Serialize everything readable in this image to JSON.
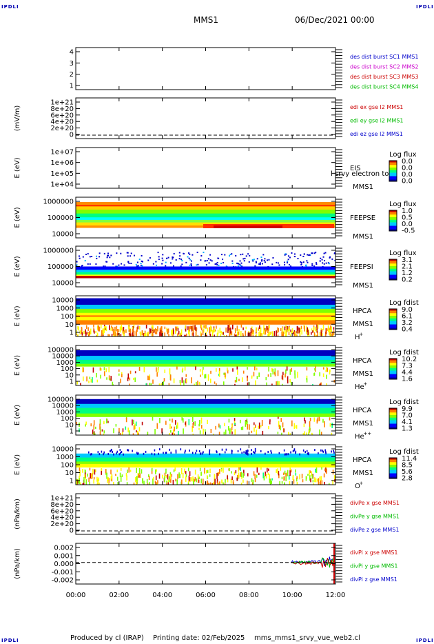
{
  "corner_labels": {
    "tl": "IPDLI",
    "tr": "IPDLI",
    "bl": "IPDLI",
    "br": "IPDLI"
  },
  "header": {
    "spacecraft": "MMS1",
    "datetime": "06/Dec/2021 00:00"
  },
  "footer": {
    "producer": "Produced by cl (IRAP)",
    "print_date": "Printing date: 02/Feb/2025",
    "filename": "mms_mms1_srvy_vue_web2.cl"
  },
  "chart_data": {
    "type": "multi-panel time series",
    "time_axis": {
      "ticks": [
        "00:00",
        "02:00",
        "04:00",
        "06:00",
        "08:00",
        "10:00",
        "12:00"
      ],
      "range": [
        "00:00",
        "12:00"
      ]
    },
    "panels": [
      {
        "id": "des-dist",
        "ylabel": "",
        "yticks": [
          "4",
          "3",
          "2",
          "1"
        ],
        "legend": [
          {
            "text": "des dist burst SC1 MMS1",
            "color": "#0000cc"
          },
          {
            "text": "des dist burst SC2 MMS2",
            "color": "#cc00cc"
          },
          {
            "text": "des dist burst SC3 MMS3",
            "color": "#cc0000"
          },
          {
            "text": "des dist burst SC4 MMS4",
            "color": "#00bb00"
          }
        ]
      },
      {
        "id": "edi",
        "ylabel": "(mV/m)",
        "yticks": [
          "1e+21",
          "8e+20",
          "6e+20",
          "4e+20",
          "2e+20",
          "0"
        ],
        "legend": [
          {
            "text": "edi ex gse l2 MMS1",
            "color": "#cc0000"
          },
          {
            "text": "edi ey gse l2 MMS1",
            "color": "#00bb00"
          },
          {
            "text": "edi ez gse l2 MMS1",
            "color": "#0000cc"
          }
        ]
      },
      {
        "id": "eis",
        "ylabel": "E (eV)",
        "yticks": [
          "1e+07",
          "1e+06",
          "1e+05",
          "1e+04"
        ],
        "instrument": [
          "EIS",
          "MMS1"
        ],
        "overlay": "l srvy electron to",
        "colorbar": {
          "title": "Log flux",
          "ticks": [
            "0.0",
            "0.0",
            "0.0",
            "0.0"
          ]
        }
      },
      {
        "id": "feepse",
        "ylabel": "E (eV)",
        "yticks": [
          "1000000",
          "100000",
          "10000"
        ],
        "instrument": [
          "FEEPSE",
          "MMS1"
        ],
        "colorbar": {
          "title": "Log flux",
          "ticks": [
            "1.0",
            "0.5",
            "0.0",
            "-0.5"
          ]
        }
      },
      {
        "id": "feepsi",
        "ylabel": "E (eV)",
        "yticks": [
          "1000000",
          "100000",
          "10000"
        ],
        "instrument": [
          "FEEPSI",
          "MMS1"
        ],
        "colorbar": {
          "title": "Log flux",
          "ticks": [
            "3.1",
            "2.1",
            "1.2",
            "0.2"
          ]
        }
      },
      {
        "id": "hpca-h",
        "ylabel": "E (eV)",
        "yticks": [
          "10000",
          "1000",
          "100",
          "10",
          "1"
        ],
        "instrument": [
          "HPCA",
          "MMS1"
        ],
        "species": "H",
        "charge": "+",
        "colorbar": {
          "title": "Log fdist",
          "ticks": [
            "9.0",
            "6.1",
            "3.2",
            "0.4"
          ]
        }
      },
      {
        "id": "hpca-he",
        "ylabel": "E (eV)",
        "yticks": [
          "100000",
          "10000",
          "1000",
          "100",
          "10",
          "1"
        ],
        "instrument": [
          "HPCA",
          "MMS1"
        ],
        "species": "He",
        "charge": "+",
        "colorbar": {
          "title": "Log fdist",
          "ticks": [
            "10.2",
            "7.3",
            "4.4",
            "1.6"
          ]
        }
      },
      {
        "id": "hpca-he2",
        "ylabel": "E (eV)",
        "yticks": [
          "100000",
          "10000",
          "1000",
          "100",
          "10",
          "1"
        ],
        "instrument": [
          "HPCA",
          "MMS1"
        ],
        "species": "He",
        "charge": "++",
        "colorbar": {
          "title": "Log fdist",
          "ticks": [
            "9.9",
            "7.0",
            "4.1",
            "1.3"
          ]
        }
      },
      {
        "id": "hpca-o",
        "ylabel": "E (eV)",
        "yticks": [
          "10000",
          "1000",
          "100",
          "10",
          "1"
        ],
        "instrument": [
          "HPCA",
          "MMS1"
        ],
        "species": "O",
        "charge": "+",
        "colorbar": {
          "title": "Log fdist",
          "ticks": [
            "11.4",
            "8.5",
            "5.6",
            "2.8"
          ]
        }
      },
      {
        "id": "divpe",
        "ylabel": "(nPa/km)",
        "yticks": [
          "1e+21",
          "8e+20",
          "6e+20",
          "4e+20",
          "2e+20",
          "0"
        ],
        "legend": [
          {
            "text": "divPe x gse MMS1",
            "color": "#cc0000"
          },
          {
            "text": "divPe y gse MMS1",
            "color": "#00bb00"
          },
          {
            "text": "divPe z gse MMS1",
            "color": "#0000cc"
          }
        ]
      },
      {
        "id": "divpi",
        "ylabel": "(nPa/km)",
        "yticks": [
          "0.002",
          "0.001",
          "0.000",
          "-0.001",
          "-0.002"
        ],
        "legend": [
          {
            "text": "divPi x gse MMS1",
            "color": "#cc0000"
          },
          {
            "text": "divPi y gse MMS1",
            "color": "#00bb00"
          },
          {
            "text": "divPi z gse MMS1",
            "color": "#0000cc"
          }
        ]
      }
    ]
  }
}
